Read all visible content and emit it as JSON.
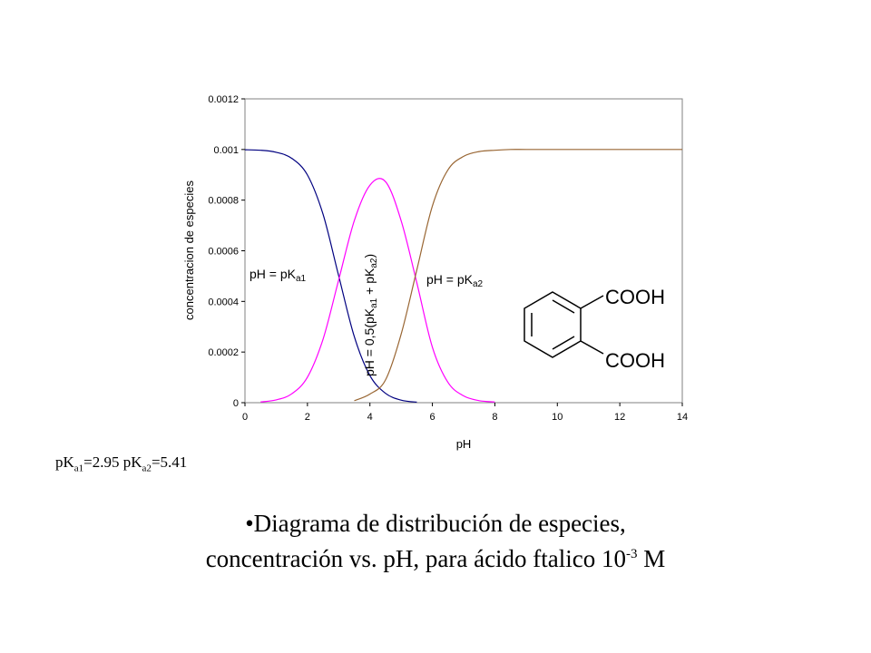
{
  "chart_data": {
    "type": "line",
    "xlabel": "pH",
    "ylabel": "concentracion de especies",
    "xlim": [
      0,
      14
    ],
    "ylim": [
      0,
      0.0012
    ],
    "xticks": [
      "0",
      "2",
      "4",
      "6",
      "8",
      "10",
      "12",
      "14"
    ],
    "yticks": [
      "0",
      "0.0002",
      "0.0004",
      "0.0006",
      "0.0008",
      "0.001",
      "0.0012"
    ],
    "grid": false,
    "legend": "none",
    "series": [
      {
        "color": "#000080",
        "x": [
          0,
          0.5,
          1,
          1.5,
          2,
          2.5,
          3,
          3.5,
          4,
          4.5,
          5,
          5.5
        ],
        "y": [
          0.000999,
          0.000997,
          0.000989,
          0.000965,
          0.000899,
          0.000744,
          0.000501,
          0.000261,
          0.000107,
          3.7e-05,
          1e-05,
          2e-06
        ]
      },
      {
        "color": "#ff00ff",
        "x": [
          0.5,
          1,
          1.5,
          2,
          2.5,
          3,
          3.5,
          4,
          4.5,
          5,
          5.5,
          6,
          6.5,
          7,
          7.5,
          8
        ],
        "y": [
          3e-06,
          1.1e-05,
          3.5e-05,
          0.000101,
          0.000251,
          0.000485,
          0.000719,
          0.000859,
          0.000873,
          0.000719,
          0.000474,
          0.000219,
          8e-05,
          2.7e-05,
          8e-06,
          3e-06
        ]
      },
      {
        "color": "#996633",
        "x": [
          3.5,
          4,
          4.5,
          5,
          5.5,
          6,
          6.5,
          7,
          7.5,
          8,
          8.5,
          9,
          10,
          11,
          12,
          13,
          14
        ],
        "y": [
          8e-06,
          3.4e-05,
          9e-05,
          0.00027,
          0.000524,
          0.000777,
          0.00092,
          0.000973,
          0.000992,
          0.000997,
          0.001,
          0.001,
          0.001,
          0.001,
          0.001,
          0.001,
          0.001
        ]
      }
    ],
    "annotations": {
      "pka1_label": "pH = pK",
      "pka1_sub": "a1",
      "pka2_label": "pH = pK",
      "pka2_sub": "a2",
      "mid_part1": "pH = 0,5(pK",
      "mid_sub1": "a1",
      "mid_part2": " + pK",
      "mid_sub2": "a2",
      "mid_part3": ")"
    },
    "structure": {
      "group_top": "COOH",
      "group_bottom": "COOH"
    }
  },
  "note": {
    "pk1_prefix": "pK",
    "pk1_sub": "a1",
    "pk1_value": "=2.95 pK",
    "pk2_sub": "a2",
    "pk2_value": "=5.41"
  },
  "caption": {
    "line1": "•Diagrama de distribución de especies,",
    "line2_prefix": "concentración vs. pH, para ácido ftalico 10",
    "line2_exp": "-3",
    "line2_suffix": " M"
  }
}
